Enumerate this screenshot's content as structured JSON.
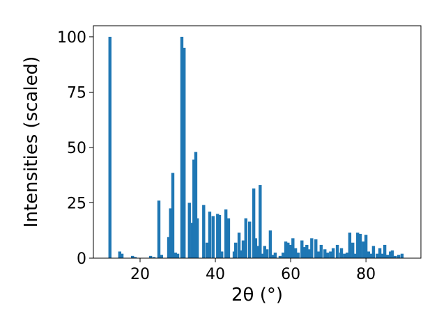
{
  "chart_data": {
    "type": "bar",
    "xlabel": "2θ (°)",
    "ylabel": "Intensities (scaled)",
    "color": "#1f77b4",
    "x": [
      12.0,
      14.6,
      15.2,
      18.0,
      18.7,
      22.8,
      23.7,
      25.0,
      25.7,
      27.6,
      28.1,
      28.7,
      29.4,
      30.0,
      31.1,
      31.7,
      33.1,
      33.9,
      34.3,
      34.8,
      35.2,
      36.9,
      37.8,
      38.5,
      39.4,
      40.6,
      41.1,
      41.7,
      42.8,
      43.5,
      45.0,
      45.4,
      46.3,
      46.9,
      47.4,
      48.1,
      49.1,
      50.2,
      50.7,
      51.3,
      51.9,
      52.4,
      53.1,
      53.7,
      54.6,
      55.2,
      55.9,
      57.2,
      58.0,
      58.7,
      59.3,
      60.0,
      60.6,
      61.3,
      62.0,
      63.0,
      63.7,
      64.3,
      65.0,
      65.6,
      66.7,
      67.4,
      68.1,
      69.1,
      69.8,
      70.6,
      71.3,
      72.4,
      73.3,
      73.5,
      74.3,
      75.0,
      75.7,
      76.5,
      77.2,
      77.8,
      78.5,
      79.3,
      80.0,
      80.7,
      81.3,
      82.0,
      83.0,
      83.7,
      84.3,
      85.0,
      85.7,
      86.5,
      87.0,
      87.8,
      88.7,
      89.6
    ],
    "values": [
      100,
      3,
      2,
      1,
      0.5,
      1,
      0.5,
      26,
      1.5,
      9.5,
      22.5,
      38.5,
      2.5,
      2,
      100,
      95,
      25,
      16,
      44.5,
      48,
      18,
      24,
      7,
      21,
      19,
      20,
      19.5,
      3,
      22,
      18,
      3,
      7,
      11.5,
      3.5,
      8,
      18,
      16.5,
      31.5,
      9,
      5.5,
      33,
      2,
      5.5,
      4,
      12.5,
      1.5,
      2.5,
      1,
      2.5,
      7.5,
      7,
      6,
      9,
      4.5,
      2.5,
      8,
      5,
      6,
      4,
      9,
      8.5,
      3,
      6,
      4,
      2.5,
      3,
      4.5,
      6,
      2.5,
      4.5,
      2,
      2.5,
      11.5,
      7,
      2,
      11.5,
      11,
      7.5,
      10.5,
      3,
      2,
      5.5,
      2,
      4.5,
      2,
      6,
      1.5,
      3,
      3.5,
      1,
      1.5,
      2
    ],
    "xlim": [
      7.6,
      94.6
    ],
    "ylim": [
      0,
      105
    ],
    "xticks": [
      20,
      40,
      60,
      80
    ],
    "yticks": [
      0,
      25,
      50,
      75,
      100
    ]
  }
}
